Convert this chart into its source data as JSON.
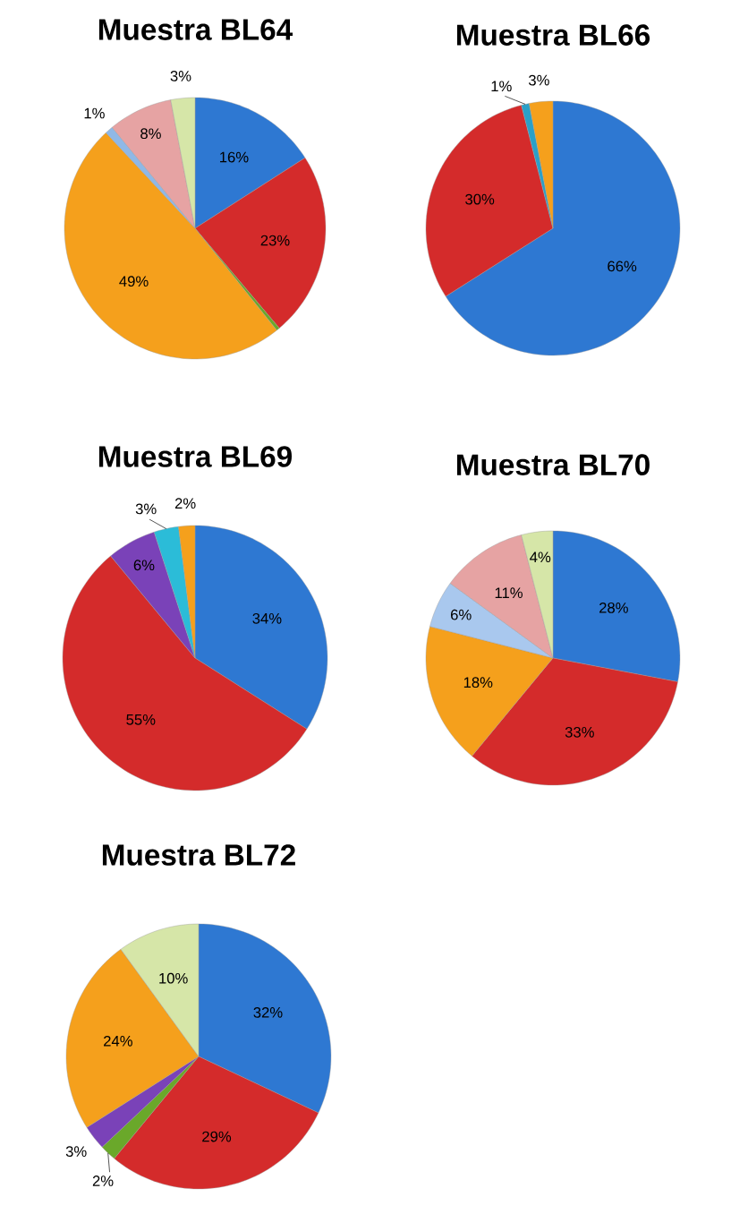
{
  "chart_data": [
    {
      "type": "pie",
      "title": "Muestra BL64",
      "categories": [
        null,
        null,
        null,
        null,
        null,
        null,
        null
      ],
      "values": [
        16,
        23,
        0.4,
        49,
        1,
        8,
        3
      ],
      "value_labels": [
        "16%",
        "23%",
        null,
        "49%",
        "1%",
        "8%",
        "3%"
      ],
      "colors": [
        "#2e78d2",
        "#d42b2b",
        "#6aa82a",
        "#f5a01c",
        "#8fb8e6",
        "#e6a3a3",
        "#d6e6a8"
      ]
    },
    {
      "type": "pie",
      "title": "Muestra BL66",
      "categories": [
        null,
        null,
        null,
        null
      ],
      "values": [
        66,
        30,
        1,
        3
      ],
      "value_labels": [
        "66%",
        "30%",
        "1%",
        "3%"
      ],
      "colors": [
        "#2e78d2",
        "#d42b2b",
        "#2aa0c8",
        "#f5a01c"
      ]
    },
    {
      "type": "pie",
      "title": "Muestra BL69",
      "categories": [
        null,
        null,
        null,
        null,
        null
      ],
      "values": [
        34,
        55,
        6,
        3,
        2
      ],
      "value_labels": [
        "34%",
        "55%",
        "6%",
        "3%",
        "2%"
      ],
      "colors": [
        "#2e78d2",
        "#d42b2b",
        "#7a42b8",
        "#2bbcd8",
        "#f5a01c"
      ]
    },
    {
      "type": "pie",
      "title": "Muestra BL70",
      "categories": [
        null,
        null,
        null,
        null,
        null,
        null
      ],
      "values": [
        28,
        33,
        18,
        6,
        11,
        4
      ],
      "value_labels": [
        "28%",
        "33%",
        "18%",
        "6%",
        "11%",
        "4%"
      ],
      "colors": [
        "#2e78d2",
        "#d42b2b",
        "#f5a01c",
        "#a9c8ee",
        "#e6a3a3",
        "#d6e6a8"
      ]
    },
    {
      "type": "pie",
      "title": "Muestra BL72",
      "categories": [
        null,
        null,
        null,
        null,
        null,
        null
      ],
      "values": [
        32,
        29,
        2,
        3,
        24,
        10
      ],
      "value_labels": [
        "32%",
        "29%",
        "2%",
        "3%",
        "24%",
        "10%"
      ],
      "colors": [
        "#2e78d2",
        "#d42b2b",
        "#6aa82a",
        "#7a42b8",
        "#f5a01c",
        "#d6e6a8"
      ]
    }
  ]
}
